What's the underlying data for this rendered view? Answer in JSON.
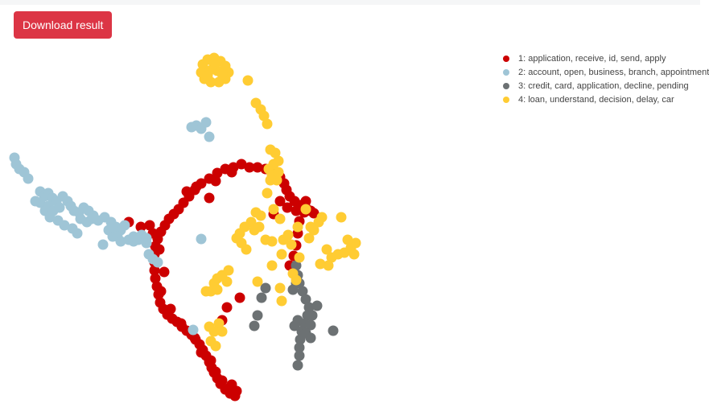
{
  "toolbar": {
    "download_label": "Download result"
  },
  "colors": {
    "button": "#dc3545"
  },
  "chart_data": {
    "type": "scatter",
    "title": "",
    "xlabel": "",
    "ylabel": "",
    "grid": false,
    "legend_position": "top-right",
    "series": [
      {
        "name": "1: application, receive, id, send, apply",
        "color": "#cc0000",
        "points": [
          [
            290,
            208
          ],
          [
            280,
            210
          ],
          [
            270,
            215
          ],
          [
            260,
            222
          ],
          [
            250,
            228
          ],
          [
            242,
            236
          ],
          [
            235,
            244
          ],
          [
            228,
            252
          ],
          [
            222,
            260
          ],
          [
            216,
            266
          ],
          [
            210,
            272
          ],
          [
            205,
            280
          ],
          [
            200,
            288
          ],
          [
            196,
            297
          ],
          [
            193,
            306
          ],
          [
            192,
            316
          ],
          [
            192,
            326
          ],
          [
            192,
            336
          ],
          [
            193,
            346
          ],
          [
            195,
            356
          ],
          [
            197,
            366
          ],
          [
            199,
            376
          ],
          [
            203,
            384
          ],
          [
            208,
            391
          ],
          [
            214,
            396
          ],
          [
            220,
            400
          ],
          [
            226,
            406
          ],
          [
            232,
            411
          ],
          [
            238,
            416
          ],
          [
            243,
            422
          ],
          [
            248,
            428
          ],
          [
            252,
            435
          ],
          [
            256,
            442
          ],
          [
            260,
            450
          ],
          [
            263,
            457
          ],
          [
            266,
            463
          ],
          [
            270,
            470
          ],
          [
            274,
            477
          ],
          [
            280,
            484
          ],
          [
            286,
            489
          ],
          [
            292,
            492
          ],
          [
            285,
            482
          ],
          [
            276,
            473
          ],
          [
            268,
            462
          ],
          [
            300,
            204
          ],
          [
            310,
            208
          ],
          [
            320,
            208
          ],
          [
            330,
            210
          ],
          [
            340,
            214
          ],
          [
            348,
            220
          ],
          [
            353,
            228
          ],
          [
            356,
            236
          ],
          [
            360,
            244
          ],
          [
            366,
            250
          ],
          [
            373,
            255
          ],
          [
            380,
            258
          ],
          [
            386,
            262
          ],
          [
            378,
            264
          ],
          [
            368,
            262
          ],
          [
            357,
            258
          ],
          [
            348,
            250
          ],
          [
            340,
            266
          ],
          [
            372,
            275
          ],
          [
            370,
            290
          ],
          [
            368,
            305
          ],
          [
            365,
            318
          ],
          [
            360,
            330
          ],
          [
            260,
            246
          ],
          [
            160,
            276
          ],
          [
            186,
            280
          ],
          [
            198,
            310
          ],
          [
            204,
            338
          ],
          [
            282,
            382
          ],
          [
            298,
            370
          ],
          [
            276,
            398
          ],
          [
            225,
            402
          ],
          [
            242,
            420
          ],
          [
            250,
            438
          ],
          [
            262,
            448
          ],
          [
            288,
            478
          ],
          [
            294,
            486
          ],
          [
            212,
            384
          ],
          [
            200,
            362
          ],
          [
            244,
            232
          ],
          [
            268,
            225
          ],
          [
            288,
            214
          ],
          [
            232,
            238
          ],
          [
            380,
            250
          ],
          [
            390,
            265
          ],
          [
            175,
            282
          ],
          [
            190,
            290
          ]
        ]
      },
      {
        "name": "2: account, open, business, branch, appointment",
        "color": "#9fc5d6",
        "points": [
          [
            18,
            196
          ],
          [
            20,
            204
          ],
          [
            24,
            210
          ],
          [
            30,
            214
          ],
          [
            35,
            222
          ],
          [
            50,
            238
          ],
          [
            55,
            244
          ],
          [
            60,
            240
          ],
          [
            65,
            246
          ],
          [
            70,
            250
          ],
          [
            78,
            244
          ],
          [
            84,
            250
          ],
          [
            88,
            256
          ],
          [
            92,
            262
          ],
          [
            98,
            264
          ],
          [
            104,
            258
          ],
          [
            110,
            262
          ],
          [
            116,
            268
          ],
          [
            122,
            274
          ],
          [
            130,
            270
          ],
          [
            138,
            276
          ],
          [
            144,
            282
          ],
          [
            150,
            286
          ],
          [
            155,
            280
          ],
          [
            135,
            286
          ],
          [
            140,
            294
          ],
          [
            146,
            294
          ],
          [
            150,
            300
          ],
          [
            160,
            298
          ],
          [
            166,
            300
          ],
          [
            172,
            298
          ],
          [
            178,
            296
          ],
          [
            182,
            302
          ],
          [
            185,
            316
          ],
          [
            190,
            322
          ],
          [
            196,
            326
          ],
          [
            50,
            252
          ],
          [
            56,
            262
          ],
          [
            62,
            270
          ],
          [
            72,
            274
          ],
          [
            80,
            280
          ],
          [
            90,
            284
          ],
          [
            96,
            290
          ],
          [
            100,
            272
          ],
          [
            108,
            276
          ],
          [
            114,
            272
          ],
          [
            60,
            256
          ],
          [
            66,
            262
          ],
          [
            74,
            258
          ],
          [
            44,
            250
          ],
          [
            128,
            304
          ],
          [
            140,
            282
          ],
          [
            250,
            297
          ],
          [
            240,
            410
          ],
          [
            238,
            158
          ],
          [
            244,
            156
          ],
          [
            250,
            160
          ],
          [
            256,
            152
          ],
          [
            260,
            170
          ],
          [
            166,
            294
          ],
          [
            176,
            292
          ],
          [
            182,
            296
          ]
        ]
      },
      {
        "name": "3: credit, card, application, decline, pending",
        "color": "#6c7173",
        "points": [
          [
            368,
            330
          ],
          [
            370,
            342
          ],
          [
            372,
            352
          ],
          [
            376,
            362
          ],
          [
            380,
            372
          ],
          [
            384,
            382
          ],
          [
            382,
            392
          ],
          [
            378,
            402
          ],
          [
            375,
            412
          ],
          [
            373,
            422
          ],
          [
            372,
            432
          ],
          [
            372,
            442
          ],
          [
            370,
            454
          ],
          [
            394,
            380
          ],
          [
            388,
            392
          ],
          [
            386,
            404
          ],
          [
            380,
            414
          ],
          [
            364,
            360
          ],
          [
            368,
            352
          ],
          [
            330,
            358
          ],
          [
            325,
            370
          ],
          [
            320,
            392
          ],
          [
            316,
            405
          ],
          [
            414,
            411
          ],
          [
            386,
            420
          ],
          [
            370,
            398
          ],
          [
            366,
            405
          ]
        ]
      },
      {
        "name": "4: loan, understand, decision, delay, car",
        "color": "#ffcc33",
        "points": [
          [
            252,
            80
          ],
          [
            258,
            74
          ],
          [
            266,
            72
          ],
          [
            274,
            76
          ],
          [
            280,
            82
          ],
          [
            284,
            90
          ],
          [
            280,
            98
          ],
          [
            272,
            102
          ],
          [
            262,
            102
          ],
          [
            254,
            98
          ],
          [
            250,
            90
          ],
          [
            260,
            88
          ],
          [
            270,
            88
          ],
          [
            266,
            80
          ],
          [
            258,
            94
          ],
          [
            276,
            92
          ],
          [
            308,
            100
          ],
          [
            318,
            128
          ],
          [
            324,
            136
          ],
          [
            328,
            144
          ],
          [
            332,
            154
          ],
          [
            336,
            186
          ],
          [
            342,
            190
          ],
          [
            346,
            200
          ],
          [
            340,
            204
          ],
          [
            334,
            210
          ],
          [
            338,
            218
          ],
          [
            344,
            224
          ],
          [
            336,
            224
          ],
          [
            332,
            240
          ],
          [
            346,
            214
          ],
          [
            318,
            264
          ],
          [
            324,
            268
          ],
          [
            312,
            276
          ],
          [
            304,
            282
          ],
          [
            298,
            290
          ],
          [
            294,
            296
          ],
          [
            300,
            302
          ],
          [
            306,
            310
          ],
          [
            316,
            286
          ],
          [
            322,
            282
          ],
          [
            330,
            298
          ],
          [
            338,
            300
          ],
          [
            352,
            298
          ],
          [
            358,
            292
          ],
          [
            370,
            282
          ],
          [
            362,
            304
          ],
          [
            350,
            316
          ],
          [
            338,
            330
          ],
          [
            364,
            340
          ],
          [
            368,
            348
          ],
          [
            372,
            320
          ],
          [
            384,
            296
          ],
          [
            390,
            286
          ],
          [
            396,
            276
          ],
          [
            400,
            270
          ],
          [
            424,
            270
          ],
          [
            406,
            310
          ],
          [
            412,
            320
          ],
          [
            408,
            330
          ],
          [
            398,
            328
          ],
          [
            420,
            316
          ],
          [
            428,
            314
          ],
          [
            436,
            308
          ],
          [
            442,
            302
          ],
          [
            432,
            298
          ],
          [
            440,
            316
          ],
          [
            266,
            352
          ],
          [
            262,
            362
          ],
          [
            270,
            346
          ],
          [
            276,
            342
          ],
          [
            282,
            350
          ],
          [
            284,
            336
          ],
          [
            270,
            360
          ],
          [
            256,
            362
          ],
          [
            320,
            350
          ],
          [
            348,
            358
          ],
          [
            350,
            374
          ],
          [
            272,
            402
          ],
          [
            266,
            412
          ],
          [
            262,
            424
          ],
          [
            268,
            430
          ],
          [
            276,
            412
          ],
          [
            260,
            406
          ],
          [
            348,
            272
          ],
          [
            340,
            260
          ],
          [
            380,
            260
          ],
          [
            386,
            282
          ]
        ]
      }
    ]
  }
}
